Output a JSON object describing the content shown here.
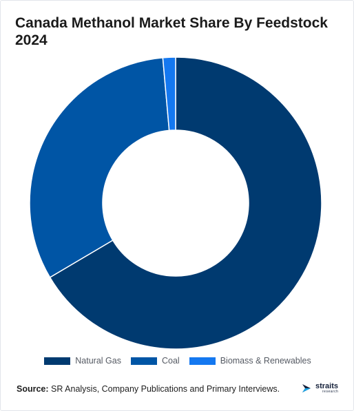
{
  "title": "Canada Methanol Market Share By Feedstock 2024",
  "chart_data": {
    "type": "pie",
    "style": "donut",
    "categories": [
      "Natural Gas",
      "Coal",
      "Biomass & Renewables"
    ],
    "values": [
      66.5,
      32.1,
      1.4
    ],
    "unit": "%",
    "colors": [
      "#003a70",
      "#0055a5",
      "#1478f0"
    ],
    "legend_position": "bottom"
  },
  "footer": {
    "source_label": "Source:",
    "source_text": " SR Analysis, Company Publications and Primary Interviews."
  },
  "logo": {
    "name": "straits",
    "subtitle": "research"
  }
}
